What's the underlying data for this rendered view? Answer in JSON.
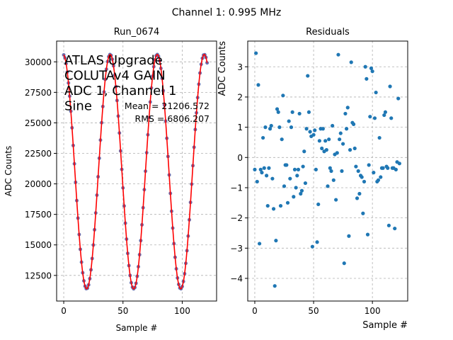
{
  "figure": {
    "suptitle": "Channel 1: 0.995 MHz"
  },
  "chart_data": [
    {
      "type": "scatter",
      "title": "Run_0674",
      "xlabel": "Sample #",
      "ylabel": "ADC Counts",
      "xlim": [
        -6,
        129
      ],
      "ylim": [
        10400,
        31700
      ],
      "xticks": [
        0,
        50,
        100
      ],
      "yticks": [
        12500,
        15000,
        17500,
        20000,
        22500,
        25000,
        27500,
        30000
      ],
      "xtick_labels": [
        "0",
        "50",
        "100"
      ],
      "ytick_labels": [
        "12500",
        "15000",
        "17500",
        "20000",
        "22500",
        "25000",
        "27500",
        "30000"
      ],
      "grid": true,
      "marker_color": "#6a6fae",
      "line_color": "#ff0000",
      "model": {
        "offset": 21000,
        "amplitude": 9600,
        "period": 39.7,
        "phase": 1.65,
        "x_start": 0,
        "x_end": 121
      },
      "annotations": {
        "lines": [
          "ATLAS Upgrade",
          "COLUTAv4 GAIN",
          "ADC 1, Channel 1",
          "Sine"
        ],
        "mean": "Mean = 21206.572",
        "rms": "RMS = 6806.207"
      }
    },
    {
      "type": "scatter",
      "title": "Residuals",
      "xlabel": "Sample #",
      "ylabel": "ADC Counts",
      "xlim": [
        -6,
        130
      ],
      "ylim": [
        -4.75,
        3.85
      ],
      "xticks": [
        0,
        50,
        100
      ],
      "yticks": [
        -4,
        -3,
        -2,
        -1,
        0,
        1,
        2,
        3
      ],
      "xtick_labels": [
        "0",
        "50",
        "100"
      ],
      "ytick_labels": [
        "−4",
        "−3",
        "−2",
        "−1",
        "0",
        "1",
        "2",
        "3"
      ],
      "grid": true,
      "marker_color": "#1f77b4",
      "x": [
        0,
        1,
        2,
        3,
        4,
        5,
        6,
        7,
        8,
        9,
        10,
        11,
        12,
        13,
        14,
        15,
        16,
        17,
        18,
        19,
        20,
        21,
        22,
        23,
        24,
        25,
        26,
        27,
        28,
        29,
        30,
        31,
        32,
        33,
        34,
        35,
        36,
        37,
        38,
        39,
        40,
        41,
        42,
        43,
        44,
        45,
        46,
        47,
        48,
        49,
        50,
        51,
        52,
        53,
        54,
        55,
        56,
        57,
        58,
        59,
        60,
        61,
        62,
        63,
        64,
        65,
        66,
        67,
        68,
        69,
        70,
        71,
        72,
        73,
        74,
        75,
        76,
        77,
        78,
        79,
        80,
        81,
        82,
        83,
        84,
        85,
        86,
        87,
        88,
        89,
        90,
        91,
        92,
        93,
        94,
        95,
        96,
        97,
        98,
        99,
        100,
        101,
        102,
        103,
        104,
        105,
        106,
        107,
        108,
        109,
        110,
        111,
        112,
        113,
        114,
        115,
        116,
        117,
        118,
        119,
        120,
        121,
        122,
        123
      ],
      "y": [
        -0.4,
        3.45,
        -0.8,
        2.4,
        -2.85,
        -0.4,
        -0.5,
        0.65,
        -0.35,
        1.0,
        -0.6,
        -1.6,
        -0.35,
        0.95,
        1.05,
        -0.7,
        -1.7,
        -4.25,
        -2.75,
        1.6,
        1.5,
        1.0,
        -1.6,
        0.6,
        2.05,
        -0.95,
        -0.25,
        -0.25,
        -1.5,
        1.2,
        -0.7,
        1.0,
        1.5,
        -1.3,
        -0.4,
        -1.0,
        -0.6,
        -0.4,
        1.45,
        -1.2,
        -1.1,
        -0.3,
        0.2,
        -0.85,
        0.95,
        2.7,
        1.5,
        0.85,
        0.7,
        -2.95,
        0.75,
        0.9,
        -0.4,
        -2.8,
        -1.55,
        0.55,
        0.95,
        0.3,
        0.95,
        0.2,
        0.55,
        0.25,
        -0.95,
        0.6,
        -0.35,
        -0.45,
        1.05,
        -0.75,
        0.1,
        -1.4,
        0.15,
        3.4,
        0.6,
        0.8,
        -0.45,
        0.45,
        -3.5,
        1.45,
        0.95,
        1.65,
        -2.6,
        0.25,
        3.15,
        1.15,
        1.1,
        0.3,
        -0.3,
        -1.35,
        -0.45,
        -1.2,
        -0.6,
        -0.65,
        -1.85,
        -0.8,
        3.0,
        2.6,
        -2.55,
        -0.25,
        1.35,
        2.95,
        2.85,
        -0.5,
        1.3,
        2.15,
        -0.8,
        -0.75,
        0.65,
        -0.65,
        -0.35,
        -0.35,
        1.4,
        1.5,
        -0.3,
        -0.35,
        -2.25,
        2.35,
        1.3,
        -0.35,
        -0.35,
        -2.35,
        -0.4,
        -0.15,
        1.95,
        -0.2
      ]
    }
  ]
}
